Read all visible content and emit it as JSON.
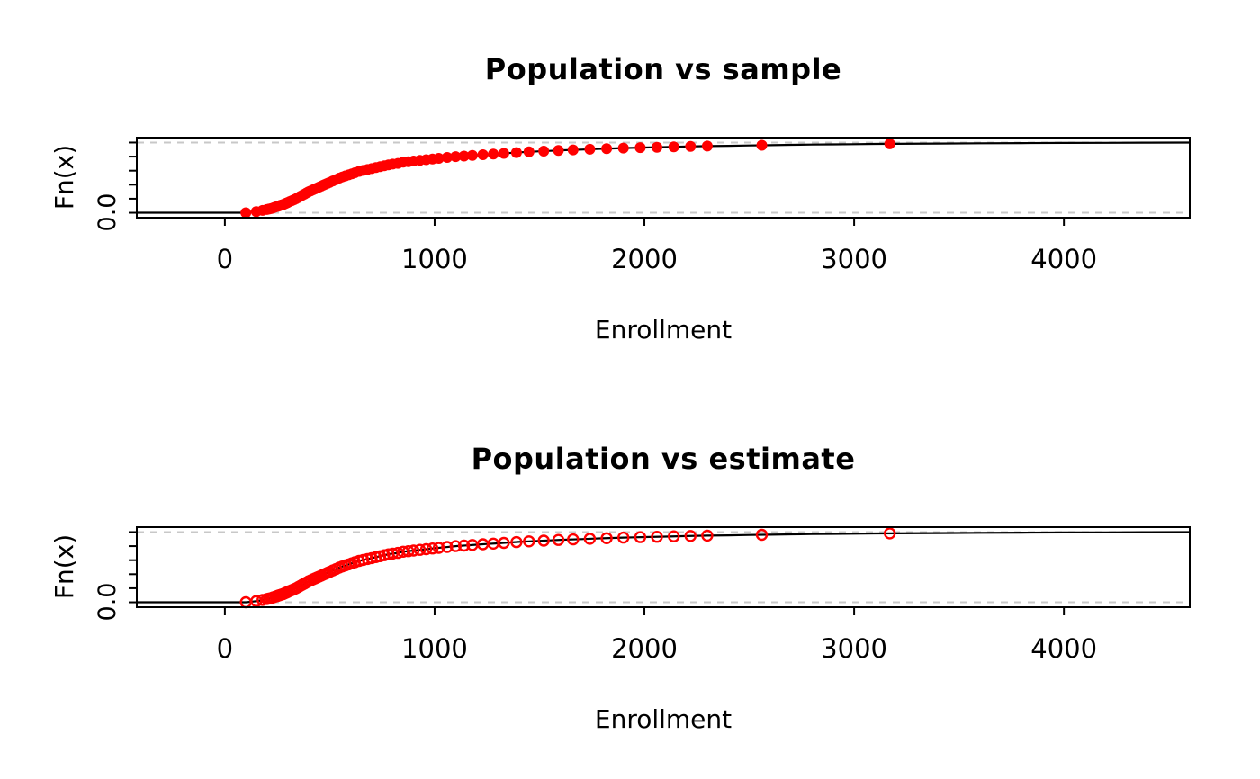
{
  "figure": {
    "background": "#FFFFFF",
    "charts_count": 2
  },
  "chart_data": [
    {
      "type": "line",
      "subtype": "ecdf",
      "title": "Population vs sample",
      "xlabel": "Enrollment",
      "ylabel": "Fn(x)",
      "x_ticks": [
        0,
        1000,
        2000,
        3000,
        4000
      ],
      "y_ticks": [
        0,
        0.2,
        0.4,
        0.6,
        0.8,
        1.0
      ],
      "y_tick_label": "0.0",
      "xlim": [
        -420,
        4600
      ],
      "ylim": [
        -0.07,
        1.07
      ],
      "reference_lines_y": [
        0,
        1
      ],
      "reference_line_style": "dashed",
      "reference_line_color": "#C8C8C8",
      "line_color": "#000000",
      "marker": "filled-circle",
      "marker_color": "#FF0000",
      "population_curve": [
        [
          -420,
          0
        ],
        [
          100,
          0
        ],
        [
          130,
          0.01
        ],
        [
          160,
          0.02
        ],
        [
          190,
          0.04
        ],
        [
          220,
          0.06
        ],
        [
          250,
          0.09
        ],
        [
          280,
          0.12
        ],
        [
          310,
          0.16
        ],
        [
          340,
          0.2
        ],
        [
          370,
          0.25
        ],
        [
          400,
          0.3
        ],
        [
          430,
          0.34
        ],
        [
          460,
          0.38
        ],
        [
          490,
          0.42
        ],
        [
          520,
          0.46
        ],
        [
          550,
          0.5
        ],
        [
          580,
          0.53
        ],
        [
          610,
          0.56
        ],
        [
          640,
          0.59
        ],
        [
          670,
          0.61
        ],
        [
          700,
          0.63
        ],
        [
          730,
          0.65
        ],
        [
          760,
          0.67
        ],
        [
          790,
          0.69
        ],
        [
          820,
          0.7
        ],
        [
          850,
          0.72
        ],
        [
          880,
          0.73
        ],
        [
          910,
          0.74
        ],
        [
          940,
          0.75
        ],
        [
          970,
          0.76
        ],
        [
          1000,
          0.77
        ],
        [
          1050,
          0.785
        ],
        [
          1100,
          0.8
        ],
        [
          1150,
          0.81
        ],
        [
          1200,
          0.82
        ],
        [
          1250,
          0.83
        ],
        [
          1300,
          0.84
        ],
        [
          1350,
          0.85
        ],
        [
          1400,
          0.86
        ],
        [
          1450,
          0.868
        ],
        [
          1500,
          0.875
        ],
        [
          1550,
          0.882
        ],
        [
          1600,
          0.889
        ],
        [
          1650,
          0.895
        ],
        [
          1700,
          0.9
        ],
        [
          1750,
          0.906
        ],
        [
          1800,
          0.911
        ],
        [
          1850,
          0.916
        ],
        [
          1900,
          0.921
        ],
        [
          1950,
          0.925
        ],
        [
          2000,
          0.929
        ],
        [
          2100,
          0.936
        ],
        [
          2200,
          0.943
        ],
        [
          2300,
          0.949
        ],
        [
          2400,
          0.954
        ],
        [
          2500,
          0.959
        ],
        [
          2600,
          0.963
        ],
        [
          2700,
          0.967
        ],
        [
          2800,
          0.971
        ],
        [
          2900,
          0.974
        ],
        [
          3000,
          0.977
        ],
        [
          3100,
          0.98
        ],
        [
          3200,
          0.982
        ],
        [
          3400,
          0.986
        ],
        [
          3600,
          0.989
        ],
        [
          3800,
          0.992
        ],
        [
          4000,
          0.994
        ],
        [
          4200,
          0.996
        ],
        [
          4400,
          0.998
        ],
        [
          4600,
          1.0
        ]
      ],
      "sample_x": [
        100,
        150,
        180,
        200,
        210,
        220,
        230,
        240,
        250,
        255,
        260,
        265,
        270,
        275,
        280,
        285,
        290,
        295,
        300,
        310,
        320,
        330,
        340,
        350,
        360,
        370,
        380,
        390,
        400,
        410,
        420,
        430,
        440,
        450,
        460,
        470,
        480,
        490,
        500,
        515,
        530,
        545,
        560,
        575,
        590,
        605,
        620,
        640,
        660,
        680,
        700,
        720,
        740,
        760,
        780,
        800,
        825,
        850,
        875,
        900,
        930,
        960,
        990,
        1020,
        1060,
        1100,
        1140,
        1180,
        1230,
        1280,
        1330,
        1390,
        1450,
        1520,
        1590,
        1660,
        1740,
        1820,
        1900,
        1980,
        2060,
        2140,
        2220,
        2300,
        2560,
        3170
      ]
    },
    {
      "type": "line",
      "subtype": "ecdf",
      "title": "Population vs estimate",
      "xlabel": "Enrollment",
      "ylabel": "Fn(x)",
      "x_ticks": [
        0,
        1000,
        2000,
        3000,
        4000
      ],
      "y_ticks": [
        0,
        0.2,
        0.4,
        0.6,
        0.8,
        1.0
      ],
      "y_tick_label": "0.0",
      "xlim": [
        -420,
        4600
      ],
      "ylim": [
        -0.07,
        1.07
      ],
      "reference_lines_y": [
        0,
        1
      ],
      "reference_line_style": "dashed",
      "reference_line_color": "#C8C8C8",
      "line_color": "#000000",
      "marker": "open-circle",
      "marker_color": "#FF0000",
      "population_curve": [
        [
          -420,
          0
        ],
        [
          100,
          0
        ],
        [
          130,
          0.01
        ],
        [
          160,
          0.02
        ],
        [
          190,
          0.04
        ],
        [
          220,
          0.06
        ],
        [
          250,
          0.09
        ],
        [
          280,
          0.12
        ],
        [
          310,
          0.16
        ],
        [
          340,
          0.2
        ],
        [
          370,
          0.25
        ],
        [
          400,
          0.3
        ],
        [
          430,
          0.34
        ],
        [
          460,
          0.38
        ],
        [
          490,
          0.42
        ],
        [
          520,
          0.46
        ],
        [
          550,
          0.5
        ],
        [
          580,
          0.53
        ],
        [
          610,
          0.56
        ],
        [
          640,
          0.59
        ],
        [
          670,
          0.61
        ],
        [
          700,
          0.63
        ],
        [
          730,
          0.65
        ],
        [
          760,
          0.67
        ],
        [
          790,
          0.69
        ],
        [
          820,
          0.7
        ],
        [
          850,
          0.72
        ],
        [
          880,
          0.73
        ],
        [
          910,
          0.74
        ],
        [
          940,
          0.75
        ],
        [
          970,
          0.76
        ],
        [
          1000,
          0.77
        ],
        [
          1050,
          0.785
        ],
        [
          1100,
          0.8
        ],
        [
          1150,
          0.81
        ],
        [
          1200,
          0.82
        ],
        [
          1250,
          0.83
        ],
        [
          1300,
          0.84
        ],
        [
          1350,
          0.85
        ],
        [
          1400,
          0.86
        ],
        [
          1450,
          0.868
        ],
        [
          1500,
          0.875
        ],
        [
          1550,
          0.882
        ],
        [
          1600,
          0.889
        ],
        [
          1650,
          0.895
        ],
        [
          1700,
          0.9
        ],
        [
          1750,
          0.906
        ],
        [
          1800,
          0.911
        ],
        [
          1850,
          0.916
        ],
        [
          1900,
          0.921
        ],
        [
          1950,
          0.925
        ],
        [
          2000,
          0.929
        ],
        [
          2100,
          0.936
        ],
        [
          2200,
          0.943
        ],
        [
          2300,
          0.949
        ],
        [
          2400,
          0.954
        ],
        [
          2500,
          0.959
        ],
        [
          2600,
          0.963
        ],
        [
          2700,
          0.967
        ],
        [
          2800,
          0.971
        ],
        [
          2900,
          0.974
        ],
        [
          3000,
          0.977
        ],
        [
          3100,
          0.98
        ],
        [
          3200,
          0.982
        ],
        [
          3400,
          0.986
        ],
        [
          3600,
          0.989
        ],
        [
          3800,
          0.992
        ],
        [
          4000,
          0.994
        ],
        [
          4200,
          0.996
        ],
        [
          4400,
          0.998
        ],
        [
          4600,
          1.0
        ]
      ],
      "sample_x": [
        100,
        150,
        180,
        200,
        210,
        220,
        230,
        240,
        250,
        255,
        260,
        265,
        270,
        275,
        280,
        285,
        290,
        295,
        300,
        310,
        320,
        330,
        340,
        350,
        360,
        370,
        380,
        390,
        400,
        410,
        420,
        430,
        440,
        450,
        460,
        470,
        480,
        490,
        500,
        515,
        530,
        545,
        560,
        575,
        590,
        605,
        620,
        640,
        660,
        680,
        700,
        720,
        740,
        760,
        780,
        800,
        825,
        850,
        875,
        900,
        930,
        960,
        990,
        1020,
        1060,
        1100,
        1140,
        1180,
        1230,
        1280,
        1330,
        1390,
        1450,
        1520,
        1590,
        1660,
        1740,
        1820,
        1900,
        1980,
        2060,
        2140,
        2220,
        2300,
        2560,
        3170
      ]
    }
  ]
}
